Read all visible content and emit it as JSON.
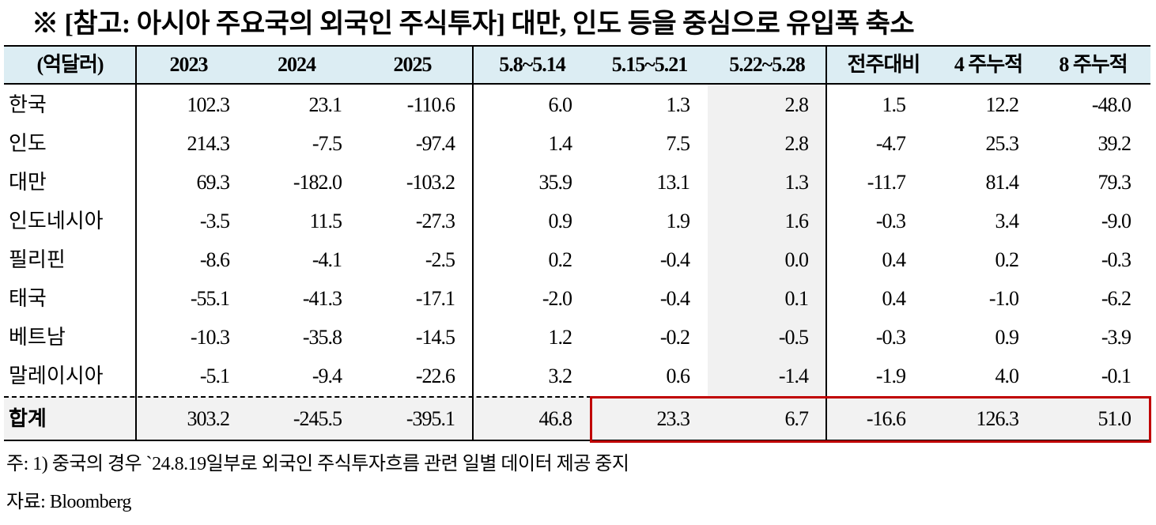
{
  "title": "※ [참고: 아시아 주요국의 외국인 주식투자] 대만, 인도 등을 중심으로 유입폭 축소",
  "table": {
    "header": [
      "(억달러)",
      "2023",
      "2024",
      "2025",
      "5.8~5.14",
      "5.15~5.21",
      "5.22~5.28",
      "전주대비",
      "4 주누적",
      "8 주누적"
    ],
    "rows": [
      [
        "한국",
        "102.3",
        "23.1",
        "-110.6",
        "6.0",
        "1.3",
        "2.8",
        "1.5",
        "12.2",
        "-48.0"
      ],
      [
        "인도",
        "214.3",
        "-7.5",
        "-97.4",
        "1.4",
        "7.5",
        "2.8",
        "-4.7",
        "25.3",
        "39.2"
      ],
      [
        "대만",
        "69.3",
        "-182.0",
        "-103.2",
        "35.9",
        "13.1",
        "1.3",
        "-11.7",
        "81.4",
        "79.3"
      ],
      [
        "인도네시아",
        "-3.5",
        "11.5",
        "-27.3",
        "0.9",
        "1.9",
        "1.6",
        "-0.3",
        "3.4",
        "-9.0"
      ],
      [
        "필리핀",
        "-8.6",
        "-4.1",
        "-2.5",
        "0.2",
        "-0.4",
        "0.0",
        "0.4",
        "0.2",
        "-0.3"
      ],
      [
        "태국",
        "-55.1",
        "-41.3",
        "-17.1",
        "-2.0",
        "-0.4",
        "0.1",
        "0.4",
        "-1.0",
        "-6.2"
      ],
      [
        "베트남",
        "-10.3",
        "-35.8",
        "-14.5",
        "1.2",
        "-0.2",
        "-0.5",
        "-0.3",
        "0.9",
        "-3.9"
      ],
      [
        "말레이시아",
        "-5.1",
        "-9.4",
        "-22.6",
        "3.2",
        "0.6",
        "-1.4",
        "-1.9",
        "4.0",
        "-0.1"
      ]
    ],
    "total": [
      "합계",
      "303.2",
      "-245.5",
      "-395.1",
      "46.8",
      "23.3",
      "6.7",
      "-16.6",
      "126.3",
      "51.0"
    ]
  },
  "notes": [
    "주: 1) 중국의 경우 `24.8.19일부로 외국인 주식투자흐름 관련 일별 데이터 제공 중지",
    "자료: Bloomberg"
  ]
}
